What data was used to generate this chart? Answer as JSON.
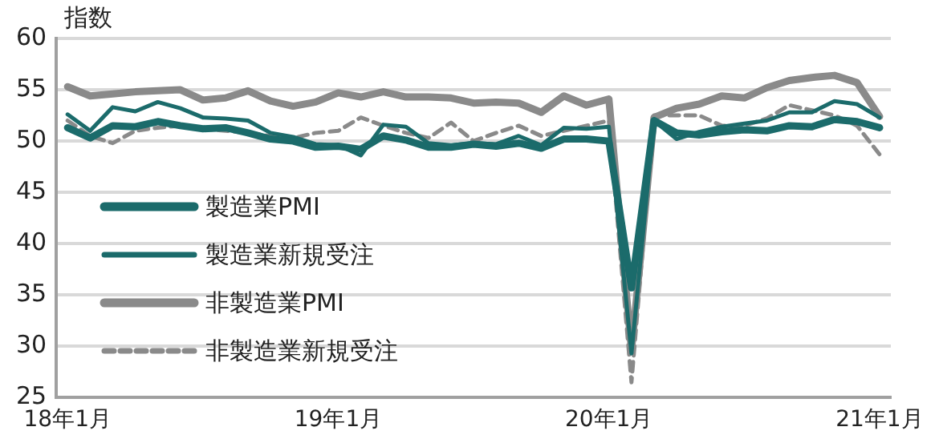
{
  "chart_data": {
    "type": "line",
    "ylabel": "指数",
    "categories": [
      "18年1月",
      null,
      null,
      null,
      null,
      null,
      null,
      null,
      null,
      null,
      null,
      null,
      "19年1月",
      null,
      null,
      null,
      null,
      null,
      null,
      null,
      null,
      null,
      null,
      null,
      "20年1月",
      null,
      null,
      null,
      null,
      null,
      null,
      null,
      null,
      null,
      null,
      null,
      "21年1月"
    ],
    "series": [
      {
        "name": "製造業PMI",
        "color": "#1b6b6b",
        "values": [
          51.3,
          50.3,
          51.5,
          51.4,
          51.9,
          51.5,
          51.2,
          51.3,
          50.8,
          50.2,
          50.0,
          49.4,
          49.5,
          49.2,
          50.5,
          50.1,
          49.4,
          49.4,
          49.7,
          49.5,
          49.8,
          49.3,
          50.2,
          50.2,
          50.0,
          35.7,
          52.0,
          50.8,
          50.6,
          50.9,
          51.1,
          51.0,
          51.5,
          51.4,
          52.1,
          51.9,
          51.3
        ]
      },
      {
        "name": "製造業新規受注",
        "color": "#1b6b6b",
        "values": [
          52.6,
          51.0,
          53.3,
          52.9,
          53.8,
          53.2,
          52.3,
          52.2,
          52.0,
          50.8,
          50.4,
          49.7,
          49.6,
          48.6,
          51.6,
          51.4,
          49.8,
          49.6,
          49.8,
          49.7,
          50.5,
          49.6,
          51.3,
          51.2,
          51.4,
          29.3,
          52.0,
          50.2,
          50.9,
          51.4,
          51.7,
          52.0,
          52.8,
          52.8,
          53.9,
          53.6,
          52.3
        ]
      },
      {
        "name": "非製造業PMI",
        "color": "#8a8a8a",
        "values": [
          55.3,
          54.4,
          54.6,
          54.8,
          54.9,
          55.0,
          54.0,
          54.2,
          54.9,
          53.9,
          53.4,
          53.8,
          54.7,
          54.3,
          54.8,
          54.3,
          54.3,
          54.2,
          53.7,
          53.8,
          53.7,
          52.8,
          54.4,
          53.5,
          54.1,
          29.6,
          52.3,
          53.2,
          53.6,
          54.4,
          54.2,
          55.2,
          55.9,
          56.2,
          56.4,
          55.7,
          52.4
        ]
      },
      {
        "name": "非製造業新規受注",
        "color": "#8a8a8a",
        "line_style": "dashed",
        "values": [
          52.0,
          50.5,
          49.8,
          51.0,
          51.3,
          51.5,
          51.2,
          51.0,
          50.8,
          50.5,
          50.3,
          50.8,
          51.0,
          52.3,
          51.5,
          50.8,
          50.3,
          51.8,
          50.0,
          50.8,
          51.5,
          50.5,
          51.0,
          51.5,
          52.0,
          26.5,
          52.5,
          52.5,
          52.5,
          51.5,
          51.5,
          52.2,
          53.5,
          53.0,
          52.5,
          51.5,
          48.7
        ]
      }
    ],
    "ylim": [
      25,
      60
    ],
    "yticks": [
      25,
      30,
      35,
      40,
      45,
      50,
      55,
      60
    ],
    "grid": "y",
    "legend": "bottom left"
  }
}
